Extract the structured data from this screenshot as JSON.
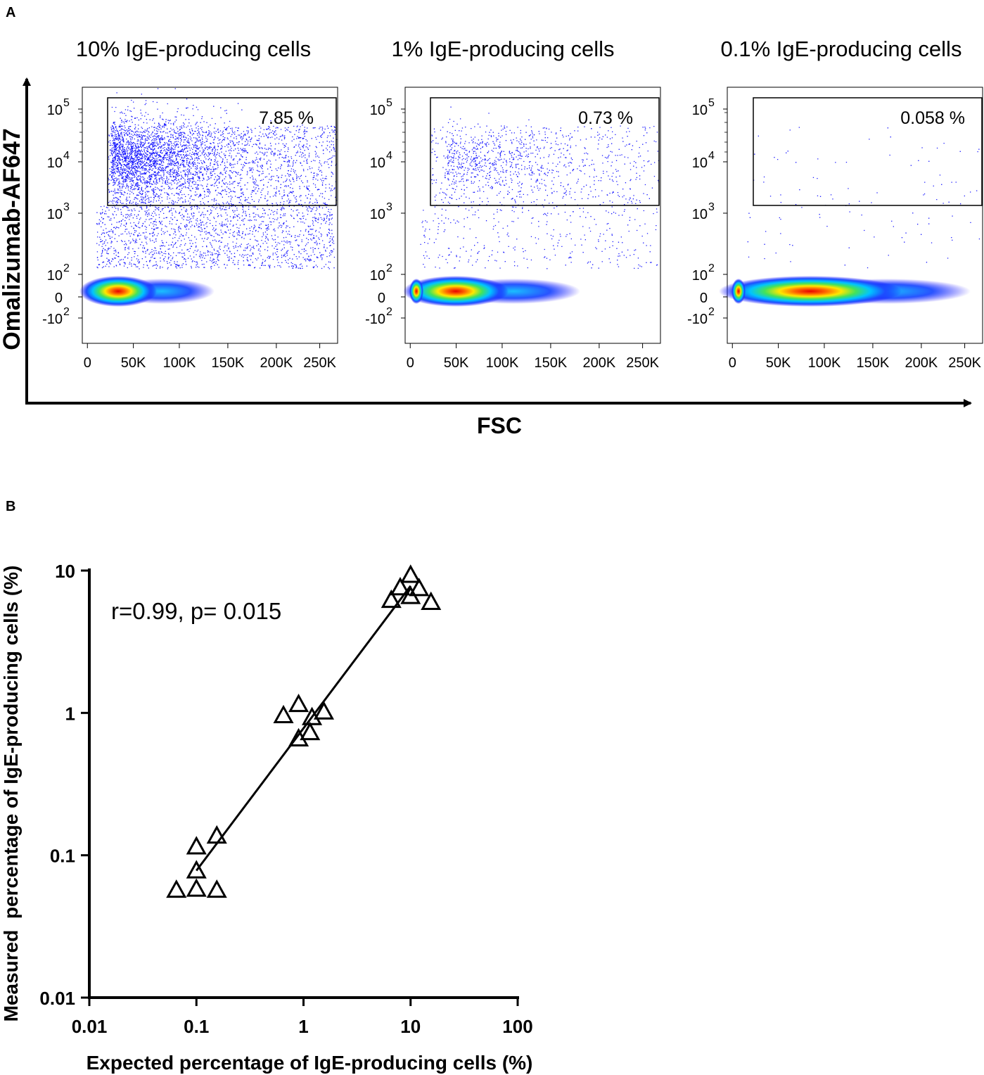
{
  "panel_a": {
    "label": "A",
    "y_axis_title": "Omalizumab-AF647",
    "x_axis_title": "FSC",
    "x_tick_labels": [
      "0",
      "50K",
      "100K",
      "150K",
      "200K",
      "250K"
    ],
    "y_tick_labels": [
      {
        "base": "10",
        "exp": "5"
      },
      {
        "base": "10",
        "exp": "4"
      },
      {
        "base": "10",
        "exp": "3"
      },
      {
        "base": "10",
        "exp": "2"
      },
      {
        "base": "0",
        "exp": ""
      },
      {
        "base": "-10",
        "exp": "2"
      }
    ],
    "plots": [
      {
        "title": "10% IgE-producing cells",
        "gate_value": "7.85 %",
        "gated_points": 9000,
        "scatter_points": 1600
      },
      {
        "title": "1% IgE-producing cells",
        "gate_value": "0.73 %",
        "gated_points": 1100,
        "scatter_points": 320
      },
      {
        "title": "0.1% IgE-producing cells",
        "gate_value": "0.058 %",
        "gated_points": 60,
        "scatter_points": 45
      }
    ]
  },
  "chart_data": {
    "type": "scatter",
    "label": "B",
    "annotation": "r=0.99, p= 0.015",
    "xlabel": "Expected percentage of IgE-producing cells (%)",
    "ylabel": "Measured  percentage of IgE-producing cells (%)",
    "xscale": "log",
    "yscale": "log",
    "xlim": [
      0.01,
      100
    ],
    "ylim": [
      0.01,
      10
    ],
    "x_ticks": [
      "0.01",
      "0.1",
      "1",
      "10",
      "100"
    ],
    "y_ticks": [
      "0.01",
      "0.1",
      "1",
      "10"
    ],
    "points": [
      {
        "x": 0.065,
        "y": 0.057
      },
      {
        "x": 0.1,
        "y": 0.058
      },
      {
        "x": 0.155,
        "y": 0.057
      },
      {
        "x": 0.1,
        "y": 0.078
      },
      {
        "x": 0.1,
        "y": 0.115
      },
      {
        "x": 0.155,
        "y": 0.137
      },
      {
        "x": 0.65,
        "y": 0.96
      },
      {
        "x": 0.9,
        "y": 1.15
      },
      {
        "x": 1.2,
        "y": 0.93
      },
      {
        "x": 1.55,
        "y": 1.02
      },
      {
        "x": 0.9,
        "y": 0.66
      },
      {
        "x": 1.15,
        "y": 0.73
      },
      {
        "x": 6.6,
        "y": 6.2
      },
      {
        "x": 8.0,
        "y": 7.6
      },
      {
        "x": 10.0,
        "y": 9.3
      },
      {
        "x": 12.0,
        "y": 7.5
      },
      {
        "x": 10.0,
        "y": 6.6
      },
      {
        "x": 15.5,
        "y": 6.0
      }
    ],
    "fit_line": {
      "x_start": 0.1,
      "y_start": 0.078,
      "x_end": 10,
      "y_end": 7.8
    }
  }
}
